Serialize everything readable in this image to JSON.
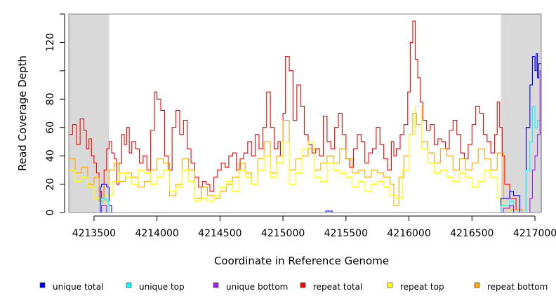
{
  "chart_data": {
    "type": "line",
    "title": "",
    "xlabel": "Coordinate in Reference Genome",
    "ylabel": "Read Coverage Depth",
    "xlim": [
      4213300,
      4217050
    ],
    "ylim": [
      0,
      140
    ],
    "x_ticks": [
      4213500,
      4214000,
      4214500,
      4215000,
      4215500,
      4216000,
      4216500,
      4217000
    ],
    "x_tick_labels": [
      "4213500",
      "4214000",
      "4214500",
      "4215000",
      "4215500",
      "4216000",
      "4216500",
      "4217000"
    ],
    "y_ticks": [
      0,
      20,
      40,
      60,
      80,
      100,
      120,
      140
    ],
    "y_tick_labels": [
      "0",
      "20",
      "40",
      "60",
      "80",
      "",
      "120",
      ""
    ],
    "shaded_regions": [
      {
        "x0": 4213300,
        "x1": 4213620,
        "color": "#d9d9d9"
      },
      {
        "x0": 4216730,
        "x1": 4217050,
        "color": "#d9d9d9"
      }
    ],
    "grid": false,
    "legend_position": "bottom",
    "series": [
      {
        "name": "repeat total",
        "color": "#ff0000",
        "x": [
          4213300,
          4213330,
          4213360,
          4213390,
          4213420,
          4213440,
          4213460,
          4213480,
          4213500,
          4213520,
          4213540,
          4213560,
          4213580,
          4213600,
          4213620,
          4213640,
          4213660,
          4213680,
          4213700,
          4213720,
          4213740,
          4213760,
          4213780,
          4213800,
          4213830,
          4213860,
          4213890,
          4213920,
          4213950,
          4213980,
          4214000,
          4214030,
          4214060,
          4214090,
          4214120,
          4214150,
          4214180,
          4214210,
          4214240,
          4214270,
          4214300,
          4214330,
          4214360,
          4214390,
          4214420,
          4214450,
          4214480,
          4214510,
          4214540,
          4214570,
          4214600,
          4214630,
          4214660,
          4214690,
          4214720,
          4214750,
          4214780,
          4214810,
          4214840,
          4214870,
          4214900,
          4214930,
          4214960,
          4214980,
          4215000,
          4215020,
          4215050,
          4215080,
          4215110,
          4215140,
          4215170,
          4215200,
          4215230,
          4215260,
          4215290,
          4215320,
          4215350,
          4215380,
          4215410,
          4215440,
          4215470,
          4215500,
          4215530,
          4215560,
          4215590,
          4215620,
          4215650,
          4215680,
          4215710,
          4215740,
          4215770,
          4215800,
          4215830,
          4215860,
          4215880,
          4215900,
          4215930,
          4215960,
          4215990,
          4216010,
          4216030,
          4216050,
          4216070,
          4216090,
          4216110,
          4216140,
          4216170,
          4216200,
          4216230,
          4216260,
          4216290,
          4216320,
          4216350,
          4216380,
          4216410,
          4216440,
          4216470,
          4216500,
          4216530,
          4216560,
          4216590,
          4216620,
          4216650,
          4216680,
          4216700,
          4216720,
          4216740,
          4216760,
          4216800,
          4216850,
          4216900,
          4216950,
          4217000,
          4217050
        ],
        "values": [
          55,
          62,
          48,
          66,
          58,
          45,
          52,
          40,
          35,
          28,
          15,
          10,
          30,
          45,
          50,
          42,
          38,
          20,
          35,
          55,
          48,
          60,
          42,
          50,
          45,
          35,
          40,
          30,
          58,
          85,
          80,
          72,
          40,
          30,
          60,
          72,
          55,
          65,
          45,
          35,
          25,
          18,
          22,
          20,
          15,
          25,
          30,
          35,
          32,
          40,
          42,
          30,
          38,
          42,
          50,
          40,
          55,
          45,
          60,
          85,
          60,
          45,
          50,
          40,
          70,
          110,
          100,
          65,
          90,
          75,
          55,
          48,
          42,
          45,
          40,
          68,
          50,
          45,
          60,
          70,
          55,
          38,
          32,
          45,
          55,
          50,
          35,
          42,
          45,
          60,
          48,
          38,
          30,
          50,
          40,
          45,
          55,
          62,
          85,
          120,
          135,
          108,
          95,
          78,
          65,
          58,
          62,
          48,
          52,
          50,
          45,
          58,
          65,
          55,
          42,
          38,
          48,
          62,
          75,
          70,
          55,
          50,
          42,
          55,
          78,
          60,
          40,
          20,
          10,
          2,
          0,
          0,
          0,
          0
        ],
        "step": true
      },
      {
        "name": "repeat bottom",
        "color": "#ffa500",
        "x": [
          4213300,
          4213350,
          4213400,
          4213450,
          4213500,
          4213540,
          4213580,
          4213620,
          4213660,
          4213700,
          4213750,
          4213800,
          4213850,
          4213900,
          4213950,
          4214000,
          4214050,
          4214100,
          4214150,
          4214200,
          4214250,
          4214300,
          4214350,
          4214400,
          4214450,
          4214500,
          4214550,
          4214600,
          4214650,
          4214700,
          4214750,
          4214800,
          4214850,
          4214900,
          4214950,
          4215000,
          4215050,
          4215100,
          4215150,
          4215200,
          4215250,
          4215300,
          4215350,
          4215400,
          4215450,
          4215500,
          4215550,
          4215600,
          4215650,
          4215700,
          4215750,
          4215800,
          4215850,
          4215880,
          4215920,
          4215960,
          4216000,
          4216030,
          4216060,
          4216100,
          4216150,
          4216200,
          4216250,
          4216300,
          4216350,
          4216400,
          4216450,
          4216500,
          4216550,
          4216600,
          4216650,
          4216700,
          4216750,
          4216800,
          4216900,
          4217000,
          4217050
        ],
        "values": [
          38,
          28,
          32,
          20,
          25,
          8,
          20,
          30,
          35,
          22,
          28,
          25,
          18,
          22,
          30,
          38,
          35,
          12,
          20,
          38,
          30,
          10,
          18,
          12,
          10,
          15,
          20,
          25,
          35,
          28,
          20,
          38,
          50,
          28,
          40,
          65,
          30,
          38,
          40,
          45,
          30,
          35,
          40,
          35,
          45,
          38,
          28,
          30,
          25,
          30,
          28,
          25,
          20,
          5,
          25,
          40,
          55,
          70,
          62,
          50,
          42,
          35,
          45,
          40,
          30,
          38,
          30,
          35,
          45,
          38,
          30,
          42,
          5,
          2,
          0,
          0,
          0
        ],
        "step": true
      },
      {
        "name": "repeat top",
        "color": "#ffff00",
        "x": [
          4213300,
          4213350,
          4213400,
          4213450,
          4213500,
          4213550,
          4213600,
          4213650,
          4213700,
          4213750,
          4213800,
          4213850,
          4213900,
          4213950,
          4214000,
          4214050,
          4214100,
          4214150,
          4214200,
          4214250,
          4214300,
          4214350,
          4214400,
          4214450,
          4214500,
          4214550,
          4214600,
          4214650,
          4214700,
          4214750,
          4214800,
          4214850,
          4214900,
          4214950,
          4215000,
          4215050,
          4215100,
          4215150,
          4215200,
          4215250,
          4215300,
          4215350,
          4215400,
          4215450,
          4215500,
          4215550,
          4215600,
          4215650,
          4215700,
          4215750,
          4215800,
          4215850,
          4215900,
          4215950,
          4216000,
          4216050,
          4216100,
          4216150,
          4216200,
          4216250,
          4216300,
          4216350,
          4216400,
          4216450,
          4216500,
          4216550,
          4216600,
          4216650,
          4216700,
          4216750,
          4216800,
          4216900,
          4217000,
          4217050
        ],
        "values": [
          30,
          22,
          25,
          18,
          10,
          5,
          12,
          22,
          28,
          25,
          20,
          30,
          28,
          20,
          25,
          30,
          15,
          18,
          30,
          22,
          8,
          10,
          8,
          12,
          18,
          22,
          15,
          30,
          25,
          20,
          30,
          40,
          25,
          35,
          50,
          20,
          28,
          45,
          50,
          25,
          22,
          35,
          30,
          28,
          25,
          18,
          22,
          15,
          20,
          22,
          18,
          12,
          10,
          30,
          55,
          75,
          45,
          35,
          28,
          30,
          25,
          22,
          28,
          25,
          18,
          22,
          30,
          25,
          10,
          3,
          0,
          0,
          0,
          0
        ],
        "step": true
      },
      {
        "name": "unique total",
        "color": "#0000ff",
        "x": [
          4213300,
          4213550,
          4213560,
          4213600,
          4213620,
          4213640,
          4215330,
          4215340,
          4215380,
          4215390,
          4216700,
          4216730,
          4216800,
          4216830,
          4216880,
          4216930,
          4216960,
          4216980,
          4217000,
          4217010,
          4217020,
          4217030,
          4217050
        ],
        "values": [
          0,
          18,
          20,
          18,
          5,
          0,
          0,
          1,
          1,
          0,
          0,
          10,
          15,
          12,
          0,
          60,
          90,
          110,
          100,
          112,
          95,
          105,
          0
        ],
        "step": true
      },
      {
        "name": "unique top",
        "color": "#00ffff",
        "x": [
          4213300,
          4213560,
          4213600,
          4213620,
          4216700,
          4216730,
          4216800,
          4216830,
          4216900,
          4216930,
          4216960,
          4216980,
          4217000,
          4217020,
          4217050
        ],
        "values": [
          0,
          10,
          8,
          0,
          0,
          5,
          8,
          0,
          0,
          30,
          50,
          75,
          60,
          65,
          0
        ],
        "step": true
      },
      {
        "name": "unique bottom",
        "color": "#a020f0",
        "x": [
          4213300,
          4213560,
          4213600,
          4216700,
          4216750,
          4216800,
          4216830,
          4216900,
          4216960,
          4216980,
          4217000,
          4217020,
          4217040,
          4217050
        ],
        "values": [
          0,
          5,
          0,
          0,
          3,
          5,
          0,
          0,
          10,
          30,
          40,
          55,
          100,
          0
        ],
        "step": true
      }
    ]
  },
  "legend": [
    {
      "label": "unique total",
      "color": "#0000ff"
    },
    {
      "label": "unique top",
      "color": "#00ffff"
    },
    {
      "label": "unique bottom",
      "color": "#a020f0"
    },
    {
      "label": "repeat total",
      "color": "#ff0000"
    },
    {
      "label": "repeat top",
      "color": "#ffff00"
    },
    {
      "label": "repeat bottom",
      "color": "#ffa500"
    }
  ]
}
